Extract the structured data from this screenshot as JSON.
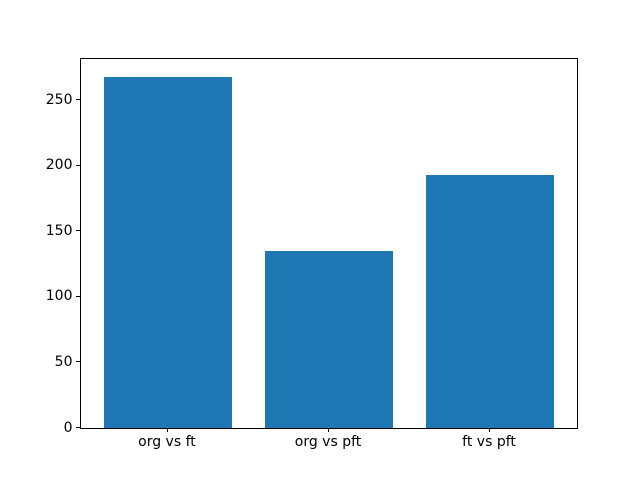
{
  "chart_data": {
    "type": "bar",
    "categories": [
      "org vs ft",
      "org vs pft",
      "ft vs pft"
    ],
    "values": [
      268,
      135,
      193
    ],
    "title": "",
    "xlabel": "",
    "ylabel": "",
    "yticks": [
      0,
      50,
      100,
      150,
      200,
      250
    ],
    "ylim": [
      0,
      281.4
    ],
    "bar_width_fraction": 0.8,
    "bar_color": "#1f77b4",
    "axes_edge_color": "#000000",
    "background_color": "#ffffff",
    "grid": false,
    "legend": null
  }
}
